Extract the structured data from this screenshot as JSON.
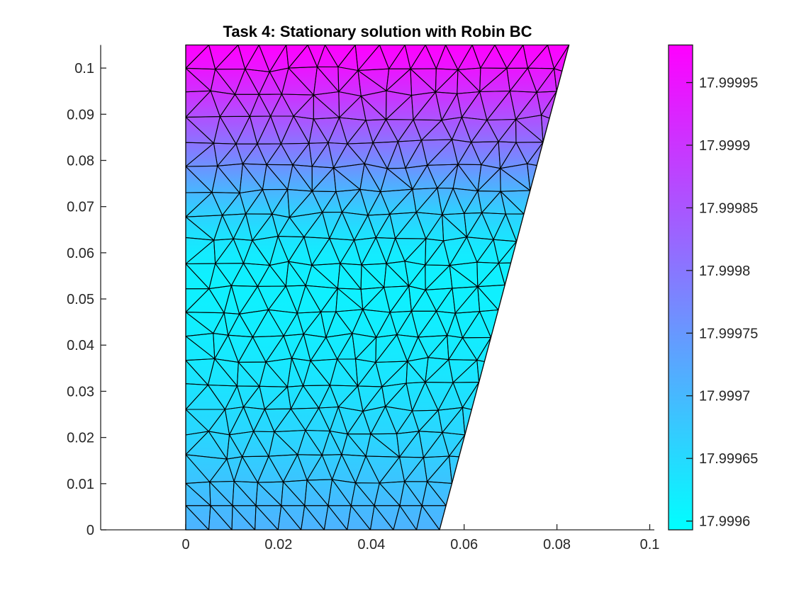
{
  "chart_data": {
    "type": "fem-trisurf",
    "title": "Task 4: Stationary solution with Robin BC",
    "xlabel": "",
    "ylabel": "",
    "xlim": [
      -0.0183,
      0.101
    ],
    "ylim": [
      0,
      0.105
    ],
    "x_ticks": [
      0,
      0.02,
      0.04,
      0.06,
      0.08,
      0.1
    ],
    "y_ticks": [
      0,
      0.01,
      0.02,
      0.03,
      0.04,
      0.05,
      0.06,
      0.07,
      0.08,
      0.09,
      0.1
    ],
    "domain_polygon": [
      [
        0,
        0
      ],
      [
        0.0547,
        0
      ],
      [
        0.0826,
        0.105
      ],
      [
        0,
        0.105
      ]
    ],
    "colormap": {
      "name": "cool",
      "start": "#00ffff",
      "end": "#ff00ff"
    },
    "colorbar": {
      "vmin": 17.999593,
      "vmax": 17.99998,
      "ticks": [
        17.9996,
        17.99965,
        17.9997,
        17.99975,
        17.9998,
        17.99985,
        17.9999,
        17.99995
      ]
    },
    "solution_profile": {
      "description": "normalized colormap position t (0=cyan,1=magenta) versus y",
      "points": [
        [
          0,
          0.3
        ],
        [
          0.005,
          0.27
        ],
        [
          0.01,
          0.235
        ],
        [
          0.015,
          0.2
        ],
        [
          0.02,
          0.165
        ],
        [
          0.025,
          0.14
        ],
        [
          0.03,
          0.115
        ],
        [
          0.035,
          0.095
        ],
        [
          0.04,
          0.08
        ],
        [
          0.045,
          0.067
        ],
        [
          0.05,
          0.06
        ],
        [
          0.055,
          0.058
        ],
        [
          0.06,
          0.08
        ],
        [
          0.065,
          0.13
        ],
        [
          0.07,
          0.21
        ],
        [
          0.075,
          0.33
        ],
        [
          0.08,
          0.46
        ],
        [
          0.085,
          0.58
        ],
        [
          0.09,
          0.7
        ],
        [
          0.095,
          0.82
        ],
        [
          0.1,
          0.92
        ],
        [
          0.105,
          1.0
        ]
      ]
    },
    "mesh": {
      "rows": 20,
      "target_element_size": 0.00515,
      "seed": 20240
    }
  }
}
